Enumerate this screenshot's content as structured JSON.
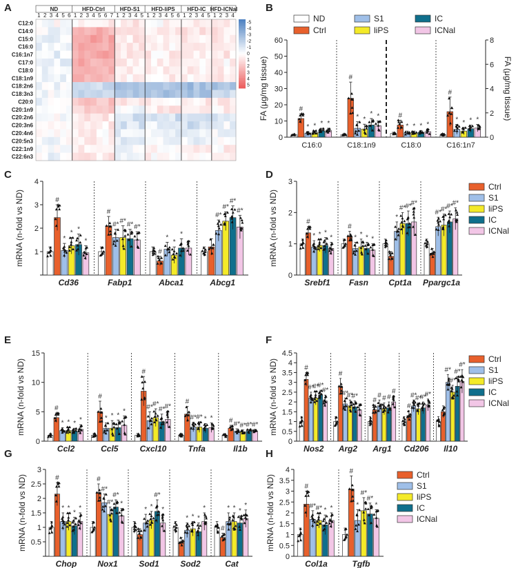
{
  "colors": {
    "ND": "#ffffff",
    "Ctrl": "#e8602c",
    "S1": "#9fbfe8",
    "liPS": "#f4ea28",
    "IC": "#0f6f8c",
    "ICNal": "#f2c6e6",
    "heat_neg": "#4a7fc0",
    "heat_pos": "#ec5a5a"
  },
  "chart_data": [
    {
      "panel": "A",
      "type": "heatmap",
      "groups": [
        {
          "name": "ND",
          "cols": [
            "1",
            "2",
            "3",
            "4",
            "5",
            "6"
          ]
        },
        {
          "name": "HFD-Ctrl",
          "cols": [
            "1",
            "2",
            "3",
            "4",
            "5",
            "6",
            "7"
          ]
        },
        {
          "name": "HFD-S1",
          "cols": [
            "1",
            "2",
            "3",
            "4",
            "5"
          ]
        },
        {
          "name": "HFD-liPS",
          "cols": [
            "1",
            "2",
            "3",
            "4",
            "5",
            "6"
          ]
        },
        {
          "name": "HFD-IC",
          "cols": [
            "1",
            "2",
            "3",
            "4",
            "5"
          ]
        },
        {
          "name": "HFD-ICNal",
          "cols": [
            "1",
            "2",
            "3",
            "4"
          ]
        }
      ],
      "rows": [
        "C12:0",
        "C14:0",
        "C15:0",
        "C16:0",
        "C16:1n7",
        "C17:0",
        "C18:0",
        "C18:1n9",
        "C18:2n6",
        "C18:3n3",
        "C20:0",
        "C20:1n9",
        "C20:2n6",
        "C20:3n6",
        "C20:4n6",
        "C20:5n3",
        "C22:1n9",
        "C22:6n3"
      ],
      "row_means": {
        "ND": [
          0,
          -0.4,
          -0.4,
          -0.5,
          -0.5,
          -0.5,
          -0.4,
          -0.5,
          -0.3,
          -0.3,
          -0.3,
          -0.4,
          -0.2,
          -0.2,
          -0.2,
          -0.2,
          -0.3,
          -0.3
        ],
        "HFD-Ctrl": [
          0.4,
          2.4,
          2.6,
          2.6,
          2.6,
          2.4,
          2.2,
          2.4,
          -1.3,
          -1.6,
          1.6,
          1.6,
          0.6,
          0.6,
          0.4,
          0.4,
          0.6,
          0.6
        ],
        "HFD-S1": [
          0.6,
          0.6,
          0.7,
          0.5,
          0.5,
          0.5,
          0.4,
          0.4,
          -2.6,
          -2.4,
          0.7,
          -0.4,
          -1.2,
          -1.0,
          -0.8,
          -0.6,
          -0.4,
          -0.4
        ],
        "HFD-liPS": [
          0.2,
          0.6,
          0.6,
          0.4,
          0.5,
          0.4,
          0.3,
          0.5,
          -2.4,
          -2.2,
          0.5,
          0.6,
          -1.2,
          -0.6,
          -0.5,
          -0.3,
          0.4,
          0.2
        ],
        "HFD-IC": [
          0.3,
          0.7,
          0.6,
          0.6,
          0.7,
          0.5,
          0.4,
          0.5,
          -2.5,
          -2.3,
          0.5,
          0.4,
          -1.1,
          -1.2,
          -0.6,
          -0.4,
          0.3,
          0.2
        ],
        "HFD-ICNal": [
          0.4,
          0.7,
          0.6,
          0.6,
          0.6,
          0.4,
          0.4,
          0.6,
          -2.3,
          -1.4,
          0.7,
          0.5,
          -1.0,
          -0.5,
          -0.4,
          -0.2,
          0.4,
          0.2
        ]
      },
      "colorbar_ticks": [
        "-5",
        "-4",
        "-3",
        "-2",
        "-1",
        "0",
        "1",
        "2",
        "3",
        "4",
        "5"
      ],
      "vmin": -5,
      "vmax": 5
    },
    {
      "panel": "B",
      "type": "bar",
      "ylabel": "FA (μg/mg tissue)",
      "ylabel_right": "FA (μg/mg tissue)",
      "ylim": [
        0,
        60
      ],
      "yticks": [
        0,
        10,
        20,
        30,
        40,
        50,
        60
      ],
      "ylim_right": [
        0,
        8
      ],
      "yticks_right": [
        0,
        2,
        4,
        6,
        8
      ],
      "series": [
        "ND",
        "Ctrl",
        "S1",
        "liPS",
        "IC",
        "ICNal"
      ],
      "categories": [
        "C16:0",
        "C18:1n9",
        "C18:0",
        "C16:1n7"
      ],
      "values": [
        [
          1.5,
          11.5,
          2.5,
          2.8,
          4,
          4
        ],
        [
          1.5,
          24,
          5.5,
          5,
          7.5,
          7
        ],
        [
          0.3,
          1,
          0.35,
          0.35,
          0.4,
          0.45
        ],
        [
          0.2,
          2.1,
          0.65,
          0.5,
          0.7,
          0.75
        ]
      ],
      "errors": [
        [
          0.4,
          3,
          1,
          1.2,
          1.5,
          1.5
        ],
        [
          0.5,
          10,
          4,
          3,
          4,
          3
        ],
        [
          0.1,
          0.4,
          0.15,
          0.15,
          0.15,
          0.2
        ],
        [
          0.1,
          1.2,
          0.4,
          0.3,
          0.3,
          0.3
        ]
      ],
      "axis": [
        "left",
        "left",
        "right",
        "right"
      ],
      "marks": [
        [
          "",
          "#",
          "*",
          "*",
          "*",
          "*"
        ],
        [
          "",
          "#",
          "*",
          "*",
          "*",
          "*"
        ],
        [
          "",
          "#",
          "*",
          "*",
          "*",
          "*"
        ],
        [
          "",
          "#",
          "*",
          "*",
          "*",
          "*"
        ]
      ]
    },
    {
      "panel": "C",
      "type": "bar",
      "ylabel": "mRNA (n-fold vs ND)",
      "ylim": [
        0,
        4
      ],
      "yticks": [
        0,
        1,
        2,
        3,
        4
      ],
      "series": [
        "ND",
        "Ctrl",
        "S1",
        "liPS",
        "IC",
        "ICNal"
      ],
      "categories": [
        "Cd36",
        "Fabp1",
        "Abca1",
        "Abcg1"
      ],
      "values": [
        [
          1,
          2.45,
          1.05,
          1.25,
          1.3,
          0.95
        ],
        [
          1,
          2.1,
          1.6,
          1.6,
          1.55,
          1.5
        ],
        [
          1,
          0.6,
          1.1,
          0.85,
          1.15,
          1.15
        ],
        [
          1,
          1.2,
          1.9,
          2.3,
          2.45,
          2.05
        ]
      ],
      "errors": [
        [
          0.2,
          0.55,
          0.3,
          0.35,
          0.45,
          0.3
        ],
        [
          0.2,
          0.4,
          0.35,
          0.5,
          0.4,
          0.35
        ],
        [
          0.2,
          0.2,
          0.3,
          0.35,
          0.4,
          0.3
        ],
        [
          0.2,
          0.35,
          0.45,
          0.4,
          0.5,
          0.5
        ]
      ],
      "marks": [
        [
          "",
          "#",
          "*",
          "*",
          "*",
          "*"
        ],
        [
          "",
          "#",
          "#*",
          "#*",
          "#*",
          "#*"
        ],
        [
          "",
          "#",
          "*",
          "*",
          "*",
          ""
        ],
        [
          "",
          "",
          "#*",
          "#*",
          "#*",
          "#*"
        ]
      ],
      "show_zero": false
    },
    {
      "panel": "D",
      "type": "bar",
      "ylabel": "mRNA (n-fold vs ND)",
      "ylim": [
        0,
        3
      ],
      "yticks": [
        0,
        1,
        2,
        3
      ],
      "series": [
        "ND",
        "Ctrl",
        "S1",
        "liPS",
        "IC",
        "ICNal"
      ],
      "categories": [
        "Srebf1",
        "Fasn",
        "Cpt1a",
        "Ppargc1a"
      ],
      "values": [
        [
          1,
          1.35,
          0.9,
          0.95,
          0.95,
          0.85
        ],
        [
          1,
          1.25,
          0.85,
          0.9,
          0.85,
          0.8
        ],
        [
          1,
          0.6,
          1.4,
          1.65,
          1.65,
          1.7
        ],
        [
          1,
          0.7,
          1.55,
          1.6,
          1.7,
          1.8
        ]
      ],
      "errors": [
        [
          0.15,
          0.2,
          0.2,
          0.2,
          0.25,
          0.2
        ],
        [
          0.15,
          0.15,
          0.2,
          0.25,
          0.2,
          0.2
        ],
        [
          0.15,
          0.15,
          0.3,
          0.35,
          0.4,
          0.45
        ],
        [
          0.15,
          0.15,
          0.3,
          0.35,
          0.35,
          0.35
        ]
      ],
      "marks": [
        [
          "",
          "#",
          "*",
          "*",
          "*",
          "*"
        ],
        [
          "",
          "#",
          "*",
          "*",
          "*",
          "*"
        ],
        [
          "",
          "",
          "*",
          "#*",
          "#*",
          "#*"
        ],
        [
          "",
          "",
          "#*",
          "#*",
          "#*",
          "#*"
        ]
      ],
      "show_zero": true
    },
    {
      "panel": "E",
      "type": "bar",
      "ylabel": "mRNA (n-fold vs ND)",
      "ylim": [
        0,
        15
      ],
      "yticks": [
        0,
        5,
        10,
        15
      ],
      "series": [
        "ND",
        "Ctrl",
        "S1",
        "liPS",
        "IC",
        "ICNal"
      ],
      "categories": [
        "Ccl2",
        "Ccl5",
        "Cxcl10",
        "Tnfa",
        "Il1b"
      ],
      "values": [
        [
          1,
          4,
          1.8,
          1.8,
          1.7,
          2
        ],
        [
          1,
          5,
          2.2,
          2.2,
          2.3,
          2.7
        ],
        [
          1,
          8.5,
          3.5,
          4,
          3.3,
          3.7
        ],
        [
          1,
          4.6,
          2.4,
          2.4,
          2.2,
          2.3
        ],
        [
          1,
          2.2,
          1.7,
          1.6,
          1.7,
          1.7
        ]
      ],
      "errors": [
        [
          0.3,
          0.8,
          0.5,
          0.6,
          0.5,
          0.8
        ],
        [
          0.3,
          1.8,
          0.9,
          1.3,
          1.3,
          1.6
        ],
        [
          0.3,
          2.5,
          1.5,
          1.5,
          1.3,
          1.4
        ],
        [
          0.3,
          1.3,
          0.8,
          0.9,
          0.8,
          0.8
        ],
        [
          0.3,
          0.5,
          0.4,
          0.3,
          0.3,
          0.3
        ]
      ],
      "marks": [
        [
          "",
          "#",
          "*",
          "*",
          "*",
          "*"
        ],
        [
          "",
          "#",
          "*",
          "*",
          "*",
          "*"
        ],
        [
          "",
          "#",
          "#*",
          "#*",
          "#*",
          "#*"
        ],
        [
          "",
          "#",
          "#*",
          "#*",
          "*",
          "*"
        ],
        [
          "",
          "#",
          "#*",
          "#*",
          "#*",
          "#*"
        ]
      ],
      "show_zero": true
    },
    {
      "panel": "F",
      "type": "bar",
      "ylabel": "mRNA (n-fold vs ND)",
      "ylim": [
        0,
        4.5
      ],
      "yticks": [
        0,
        0.5,
        1,
        1.5,
        2,
        2.5,
        3,
        3.5,
        4,
        4.5
      ],
      "series": [
        "ND",
        "Ctrl",
        "S1",
        "liPS",
        "IC",
        "ICNal"
      ],
      "categories": [
        "Nos2",
        "Arg2",
        "Arg1",
        "Cd206",
        "Il10"
      ],
      "values": [
        [
          1,
          3.15,
          2.2,
          2.2,
          2.35,
          2.05
        ],
        [
          1,
          2.8,
          1.9,
          1.8,
          1.75,
          1.6
        ],
        [
          1,
          1.6,
          1.8,
          1.65,
          1.7,
          2.0
        ],
        [
          1,
          1.3,
          1.8,
          1.65,
          1.7,
          1.85
        ],
        [
          1,
          1.5,
          3.0,
          2.5,
          2.8,
          3.05
        ]
      ],
      "errors": [
        [
          0.25,
          0.35,
          0.3,
          0.35,
          0.25,
          0.3
        ],
        [
          0.25,
          0.4,
          0.3,
          0.3,
          0.3,
          0.3
        ],
        [
          0.25,
          0.25,
          0.3,
          0.3,
          0.3,
          0.3
        ],
        [
          0.25,
          0.25,
          0.3,
          0.3,
          0.3,
          0.3
        ],
        [
          0.25,
          0.3,
          0.4,
          0.35,
          0.5,
          0.6
        ]
      ],
      "marks": [
        [
          "",
          "#",
          "#*",
          "#*",
          "#*",
          "#*"
        ],
        [
          "",
          "#",
          "#*",
          "#*",
          "#*",
          ""
        ],
        [
          "",
          "#",
          "#",
          "#",
          "#",
          "#"
        ],
        [
          "",
          "#",
          "#*",
          "#*",
          "#*",
          "#*"
        ],
        [
          "",
          "",
          "#*",
          "#*",
          "#*",
          "#*"
        ]
      ],
      "show_zero": true
    },
    {
      "panel": "G",
      "type": "bar",
      "ylabel": "mRNA (n-fold vs ND)",
      "ylim": [
        0,
        3
      ],
      "yticks": [
        0,
        0.5,
        1,
        1.5,
        2,
        2.5,
        3
      ],
      "series": [
        "ND",
        "Ctrl",
        "S1",
        "liPS",
        "IC",
        "ICNal"
      ],
      "categories": [
        "Chop",
        "Nox1",
        "Sod1",
        "Sod2",
        "Cat"
      ],
      "values": [
        [
          1,
          2.15,
          1.2,
          1.2,
          1.05,
          1.2
        ],
        [
          1,
          2.2,
          1.85,
          1.45,
          1.7,
          1.4
        ],
        [
          1,
          0.75,
          1.15,
          1.25,
          1.55,
          1.15
        ],
        [
          1,
          0.5,
          0.9,
          0.95,
          0.85,
          1.2
        ],
        [
          1,
          0.65,
          1.2,
          1.2,
          1.15,
          1.3
        ]
      ],
      "errors": [
        [
          0.2,
          0.4,
          0.3,
          0.3,
          0.3,
          0.3
        ],
        [
          0.2,
          0.3,
          0.3,
          0.25,
          0.25,
          0.25
        ],
        [
          0.2,
          0.2,
          0.3,
          0.3,
          0.4,
          0.3
        ],
        [
          0.2,
          0.15,
          0.25,
          0.25,
          0.3,
          0.3
        ],
        [
          0.2,
          0.15,
          0.3,
          0.3,
          0.25,
          0.3
        ]
      ],
      "marks": [
        [
          "",
          "#",
          "*",
          "*",
          "*",
          "*"
        ],
        [
          "",
          "#",
          "#*",
          "#*",
          "#*",
          "*"
        ],
        [
          "",
          "",
          "*",
          "*",
          "#*",
          "*"
        ],
        [
          "",
          "",
          "*",
          "*",
          "*",
          "*"
        ],
        [
          "",
          "#",
          "*",
          "*",
          "*",
          "*"
        ]
      ],
      "show_zero": false
    },
    {
      "panel": "H",
      "type": "bar",
      "ylabel": "mRNA (n-fold vs ND)",
      "ylim": [
        0,
        4
      ],
      "yticks": [
        0,
        0.5,
        1,
        1.5,
        2,
        2.5,
        3,
        3.5,
        4
      ],
      "series": [
        "ND",
        "Ctrl",
        "S1",
        "liPS",
        "IC",
        "ICNal"
      ],
      "categories": [
        "Col1a",
        "Tgfb"
      ],
      "values": [
        [
          1,
          2.4,
          1.7,
          1.65,
          1.45,
          1.65
        ],
        [
          1,
          3.1,
          1.65,
          2.1,
          1.95,
          1.75
        ]
      ],
      "errors": [
        [
          0.3,
          0.6,
          0.4,
          0.35,
          0.45,
          0.35
        ],
        [
          0.3,
          0.6,
          0.5,
          0.6,
          0.5,
          0.4
        ]
      ],
      "marks": [
        [
          "",
          "#",
          "#*",
          "#*",
          "*",
          "*"
        ],
        [
          "",
          "#",
          "*",
          "#*",
          "#*",
          "*"
        ]
      ],
      "show_zero": true
    }
  ],
  "legends": {
    "B": [
      "ND",
      "S1",
      "IC",
      "Ctrl",
      "liPS",
      "ICNal"
    ],
    "main": [
      "Ctrl",
      "S1",
      "liPS",
      "IC",
      "ICNal"
    ]
  },
  "panel_labels": [
    "A",
    "B",
    "C",
    "D",
    "E",
    "F",
    "G",
    "H"
  ]
}
